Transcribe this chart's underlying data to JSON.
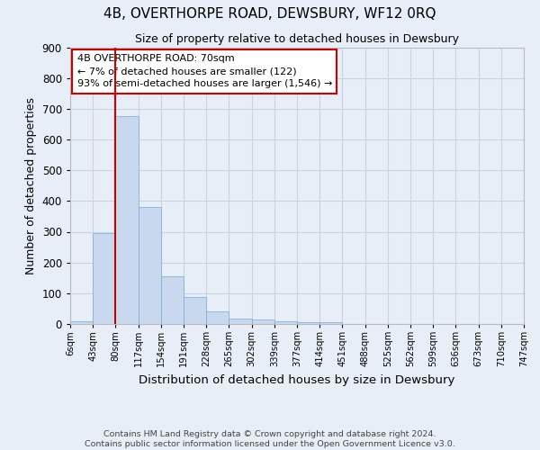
{
  "title": "4B, OVERTHORPE ROAD, DEWSBURY, WF12 0RQ",
  "subtitle": "Size of property relative to detached houses in Dewsbury",
  "xlabel": "Distribution of detached houses by size in Dewsbury",
  "ylabel": "Number of detached properties",
  "bin_labels": [
    "6sqm",
    "43sqm",
    "80sqm",
    "117sqm",
    "154sqm",
    "191sqm",
    "228sqm",
    "265sqm",
    "302sqm",
    "339sqm",
    "377sqm",
    "414sqm",
    "451sqm",
    "488sqm",
    "525sqm",
    "562sqm",
    "599sqm",
    "636sqm",
    "673sqm",
    "710sqm",
    "747sqm"
  ],
  "bar_values": [
    10,
    295,
    675,
    380,
    155,
    88,
    42,
    17,
    14,
    10,
    5,
    7,
    0,
    0,
    0,
    0,
    0,
    0,
    0,
    0
  ],
  "bar_color": "#c8d8ee",
  "bar_edge_color": "#7aaad0",
  "grid_color": "#c8d4e4",
  "background_color": "#e8eef8",
  "property_line_x": 2,
  "property_line_color": "#cc0000",
  "annotation_text": "4B OVERTHORPE ROAD: 70sqm\n← 7% of detached houses are smaller (122)\n93% of semi-detached houses are larger (1,546) →",
  "annotation_box_color": "#ffffff",
  "annotation_box_edge": "#cc0000",
  "footer_line1": "Contains HM Land Registry data © Crown copyright and database right 2024.",
  "footer_line2": "Contains public sector information licensed under the Open Government Licence v3.0.",
  "ylim": [
    0,
    900
  ],
  "yticks": [
    0,
    100,
    200,
    300,
    400,
    500,
    600,
    700,
    800,
    900
  ],
  "title_fontsize": 11,
  "subtitle_fontsize": 9,
  "ylabel_fontsize": 9,
  "xlabel_fontsize": 9.5
}
